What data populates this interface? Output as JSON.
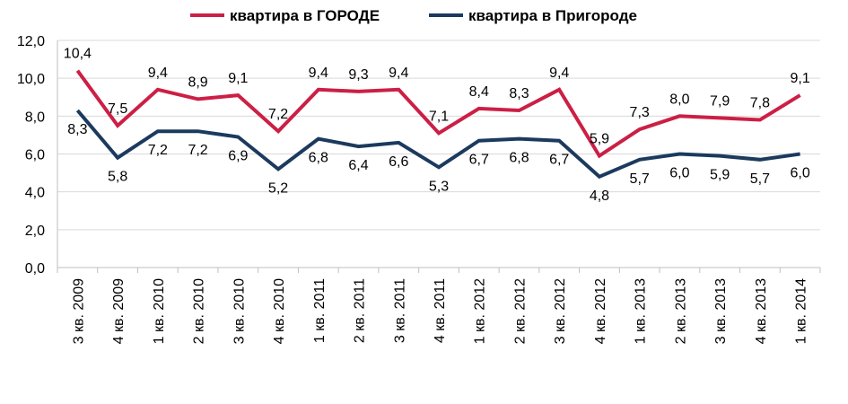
{
  "chart_data": {
    "type": "line",
    "categories": [
      "3 кв. 2009",
      "4 кв. 2009",
      "1 кв. 2010",
      "2 кв. 2010",
      "3 кв. 2010",
      "4 кв. 2010",
      "1 кв. 2011",
      "2 кв. 2011",
      "3 кв. 2011",
      "4 кв. 2011",
      "1 кв. 2012",
      "2 кв. 2012",
      "3 кв. 2012",
      "4 кв. 2012",
      "1 кв. 2013",
      "2 кв. 2013",
      "3 кв. 2013",
      "4 кв. 2013",
      "1 кв. 2014"
    ],
    "series": [
      {
        "name": "квартира в ГОРОДЕ",
        "color": "#CC1F45",
        "values": [
          10.4,
          7.5,
          9.4,
          8.9,
          9.1,
          7.2,
          9.4,
          9.3,
          9.4,
          7.1,
          8.4,
          8.3,
          9.4,
          5.9,
          7.3,
          8.0,
          7.9,
          7.8,
          9.1
        ],
        "labels": [
          "10,4",
          "7,5",
          "9,4",
          "8,9",
          "9,1",
          "7,2",
          "9,4",
          "9,3",
          "9,4",
          "7,1",
          "8,4",
          "8,3",
          "9,4",
          "5,9",
          "7,3",
          "8,0",
          "7,9",
          "7,8",
          "9,1"
        ]
      },
      {
        "name": "квартира в Пригороде",
        "color": "#1B3A5E",
        "values": [
          8.3,
          5.8,
          7.2,
          7.2,
          6.9,
          5.2,
          6.8,
          6.4,
          6.6,
          5.3,
          6.7,
          6.8,
          6.7,
          4.8,
          5.7,
          6.0,
          5.9,
          5.7,
          6.0
        ],
        "labels": [
          "8,3",
          "5,8",
          "7,2",
          "7,2",
          "6,9",
          "5,2",
          "6,8",
          "6,4",
          "6,6",
          "5,3",
          "6,7",
          "6,8",
          "6,7",
          "4,8",
          "5,7",
          "6,0",
          "5,9",
          "5,7",
          "6,0"
        ]
      }
    ],
    "ylim": [
      0,
      12
    ],
    "yticks": [
      0,
      2,
      4,
      6,
      8,
      10,
      12
    ],
    "ytick_labels": [
      "0,0",
      "2,0",
      "4,0",
      "6,0",
      "8,0",
      "10,0",
      "12,0"
    ],
    "grid": true,
    "legend": "top-center"
  }
}
